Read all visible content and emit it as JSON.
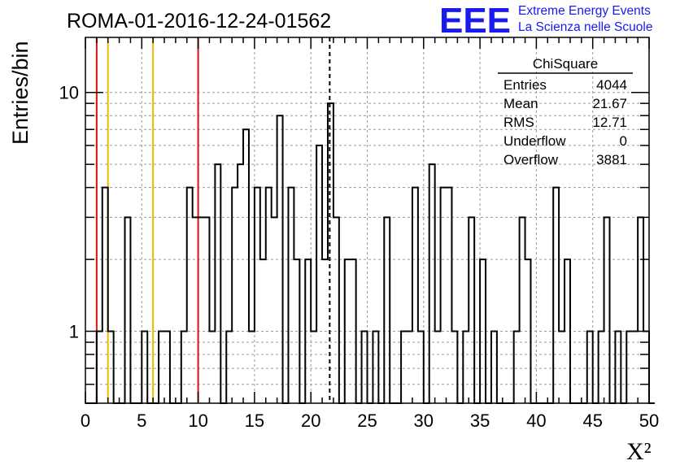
{
  "header": {
    "run_id": "ROMA-01-2016-12-24-01562",
    "logo_mark": "EEE",
    "logo_line1": "Extreme Energy Events",
    "logo_line2": "La Scienza nelle Scuole"
  },
  "stats_box": {
    "title": "ChiSquare",
    "rows": [
      {
        "label": "Entries",
        "value": "4044"
      },
      {
        "label": "Mean",
        "value": "21.67"
      },
      {
        "label": "RMS",
        "value": "12.71"
      },
      {
        "label": "Underflow",
        "value": "0"
      },
      {
        "label": "Overflow",
        "value": "3881"
      }
    ]
  },
  "colors": {
    "histogram": "#000000",
    "red_lines": "#dd1111",
    "yellow_lines": "#f0b800",
    "grid": "#9a9a9a",
    "logo": "#1a1aee"
  },
  "chart_data": {
    "type": "histogram",
    "title": "ROMA-01-2016-12-24-01562",
    "xlabel": "X²",
    "ylabel": "Entries/bin",
    "x_scale": "linear",
    "y_scale": "log",
    "xlim": [
      0,
      50
    ],
    "ylim": [
      0.5,
      17
    ],
    "x_ticks": [
      "0",
      "5",
      "10",
      "15",
      "20",
      "25",
      "30",
      "35",
      "40",
      "45",
      "50"
    ],
    "y_ticks": [
      "1",
      "10"
    ],
    "grid": true,
    "bin_width": 0.5,
    "bin_start": 0,
    "counts": [
      0,
      0,
      1,
      4,
      1,
      0,
      0,
      3,
      0,
      0,
      1,
      0,
      0,
      1,
      1,
      0,
      0,
      1,
      4,
      3,
      3,
      3,
      1,
      5,
      0,
      1,
      4,
      5,
      7,
      1,
      4,
      2,
      4,
      3,
      8,
      0,
      4,
      2,
      0,
      2,
      1,
      6,
      2,
      9,
      3,
      0,
      2,
      2,
      0,
      1,
      0,
      1,
      0,
      3,
      0,
      0,
      1,
      1,
      4,
      1,
      0,
      5,
      1,
      4,
      4,
      1,
      0,
      1,
      3,
      0,
      2,
      0,
      1,
      0,
      0,
      0,
      1,
      3,
      2,
      0,
      0,
      0,
      0,
      4,
      1,
      2,
      0,
      0,
      0,
      1,
      0,
      1,
      3,
      0,
      1,
      0,
      1,
      1,
      3,
      1,
      0
    ],
    "mean_line": {
      "x": 21.67,
      "style": "dashed"
    },
    "vertical_lines": [
      {
        "x": 1,
        "color": "red"
      },
      {
        "x": 2,
        "color": "yellow"
      },
      {
        "x": 6,
        "color": "yellow"
      },
      {
        "x": 10,
        "color": "red"
      }
    ]
  }
}
